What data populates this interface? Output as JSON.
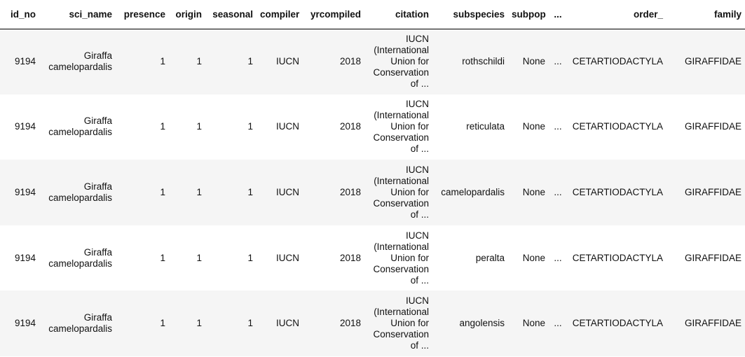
{
  "columns": {
    "id_no": "id_no",
    "sci_name": "sci_name",
    "presence": "presence",
    "origin": "origin",
    "seasonal": "seasonal",
    "compiler": "compiler",
    "yrcompiled": "yrcompiled",
    "citation": "citation",
    "subspecies": "subspecies",
    "subpop": "subpop",
    "ellipsis": "...",
    "order_": "order_",
    "family": "family"
  },
  "rows": [
    {
      "id_no": "9194",
      "sci_name_line1": "Giraffa",
      "sci_name_line2": "camelopardalis",
      "presence": "1",
      "origin": "1",
      "seasonal": "1",
      "compiler": "IUCN",
      "yrcompiled": "2018",
      "citation_lines": [
        "IUCN",
        "(International",
        "Union for",
        "Conservation",
        "of ..."
      ],
      "subspecies": "rothschildi",
      "subpop": "None",
      "ellipsis": "...",
      "order_": "CETARTIODACTYLA",
      "family": "GIRAFFIDAE"
    },
    {
      "id_no": "9194",
      "sci_name_line1": "Giraffa",
      "sci_name_line2": "camelopardalis",
      "presence": "1",
      "origin": "1",
      "seasonal": "1",
      "compiler": "IUCN",
      "yrcompiled": "2018",
      "citation_lines": [
        "IUCN",
        "(International",
        "Union for",
        "Conservation",
        "of ..."
      ],
      "subspecies": "reticulata",
      "subpop": "None",
      "ellipsis": "...",
      "order_": "CETARTIODACTYLA",
      "family": "GIRAFFIDAE"
    },
    {
      "id_no": "9194",
      "sci_name_line1": "Giraffa",
      "sci_name_line2": "camelopardalis",
      "presence": "1",
      "origin": "1",
      "seasonal": "1",
      "compiler": "IUCN",
      "yrcompiled": "2018",
      "citation_lines": [
        "IUCN",
        "(International",
        "Union for",
        "Conservation",
        "of ..."
      ],
      "subspecies": "camelopardalis",
      "subpop": "None",
      "ellipsis": "...",
      "order_": "CETARTIODACTYLA",
      "family": "GIRAFFIDAE"
    },
    {
      "id_no": "9194",
      "sci_name_line1": "Giraffa",
      "sci_name_line2": "camelopardalis",
      "presence": "1",
      "origin": "1",
      "seasonal": "1",
      "compiler": "IUCN",
      "yrcompiled": "2018",
      "citation_lines": [
        "IUCN",
        "(International",
        "Union for",
        "Conservation",
        "of ..."
      ],
      "subspecies": "peralta",
      "subpop": "None",
      "ellipsis": "...",
      "order_": "CETARTIODACTYLA",
      "family": "GIRAFFIDAE"
    },
    {
      "id_no": "9194",
      "sci_name_line1": "Giraffa",
      "sci_name_line2": "camelopardalis",
      "presence": "1",
      "origin": "1",
      "seasonal": "1",
      "compiler": "IUCN",
      "yrcompiled": "2018",
      "citation_lines": [
        "IUCN",
        "(International",
        "Union for",
        "Conservation",
        "of ..."
      ],
      "subspecies": "angolensis",
      "subpop": "None",
      "ellipsis": "...",
      "order_": "CETARTIODACTYLA",
      "family": "GIRAFFIDAE"
    }
  ],
  "colors": {
    "stripe": "#f5f5f5",
    "header_rule": "#000000",
    "text": "#111111"
  }
}
